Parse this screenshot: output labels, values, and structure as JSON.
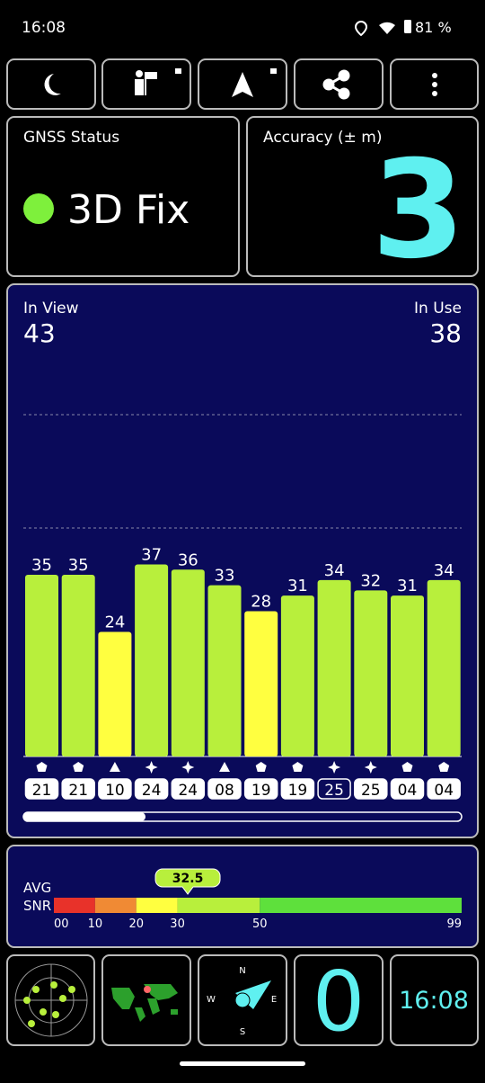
{
  "status_bar": {
    "time": "16:08",
    "battery": "81 %"
  },
  "gnss_status": {
    "label": "GNSS Status",
    "value": "3D Fix"
  },
  "accuracy": {
    "label": "Accuracy (± m)",
    "value": "3"
  },
  "satellites": {
    "in_view_label": "In View",
    "in_view": "43",
    "in_use_label": "In Use",
    "in_use": "38",
    "bars": [
      {
        "value": 35,
        "id": "21",
        "shape": "pentagon",
        "used": true
      },
      {
        "value": 35,
        "id": "21",
        "shape": "pentagon",
        "used": true
      },
      {
        "value": 24,
        "id": "10",
        "shape": "triangle",
        "used": true
      },
      {
        "value": 37,
        "id": "24",
        "shape": "star",
        "used": true
      },
      {
        "value": 36,
        "id": "24",
        "shape": "star",
        "used": true
      },
      {
        "value": 33,
        "id": "08",
        "shape": "triangle",
        "used": true
      },
      {
        "value": 28,
        "id": "19",
        "shape": "pentagon",
        "used": true
      },
      {
        "value": 31,
        "id": "19",
        "shape": "pentagon",
        "used": true
      },
      {
        "value": 34,
        "id": "25",
        "shape": "star",
        "used": false
      },
      {
        "value": 32,
        "id": "25",
        "shape": "star",
        "used": true
      },
      {
        "value": 31,
        "id": "04",
        "shape": "pentagon",
        "used": true
      },
      {
        "value": 34,
        "id": "04",
        "shape": "pentagon",
        "used": true
      }
    ]
  },
  "snr": {
    "label_1": "AVG",
    "label_2": "SNR",
    "avg": 32.5,
    "xlim": [
      0,
      99
    ],
    "ticks": [
      {
        "value": 0,
        "label": "00"
      },
      10,
      20,
      30,
      50,
      99
    ],
    "segment_colors": [
      "#e8322a",
      "#f08a34",
      "#ffff40",
      "#b8ef3c",
      "#5ee03c"
    ]
  },
  "tiles": {
    "count": "0",
    "clock": "16:08"
  }
}
